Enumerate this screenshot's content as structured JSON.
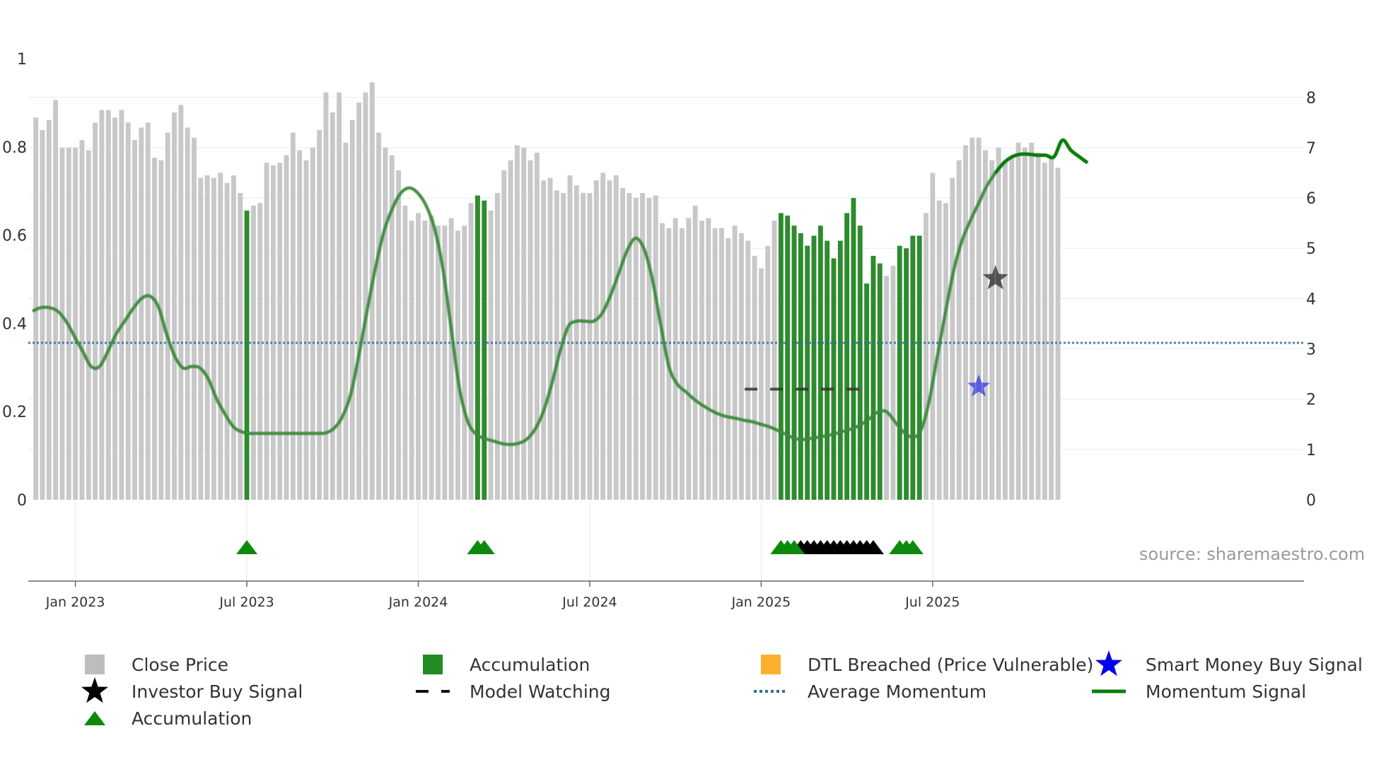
{
  "chart_data": {
    "type": "bar+line",
    "left_axis": {
      "ticks": [
        "0",
        "0.2",
        "0.4",
        "0.6",
        "0.8",
        "1"
      ],
      "range": [
        0,
        1
      ]
    },
    "right_axis": {
      "ticks": [
        "0",
        "1",
        "2",
        "3",
        "4",
        "5",
        "6",
        "7",
        "8"
      ],
      "range": [
        0,
        8.77
      ]
    },
    "x_axis": {
      "ticks": [
        "Jan 2023",
        "Jul 2023",
        "Jan 2024",
        "Jul 2024",
        "Jan 2025",
        "Jul 2025"
      ],
      "tick_weeks": [
        6,
        32,
        58,
        84,
        110,
        136
      ]
    },
    "close_price": [
      7.6,
      7.35,
      7.55,
      7.95,
      7.0,
      7.0,
      7.0,
      7.15,
      6.95,
      7.5,
      7.75,
      7.75,
      7.6,
      7.75,
      7.5,
      7.15,
      7.4,
      7.5,
      6.8,
      6.75,
      7.3,
      7.7,
      7.85,
      7.4,
      7.2,
      6.4,
      6.45,
      6.4,
      6.5,
      6.3,
      6.45,
      6.1,
      5.75,
      5.85,
      5.9,
      6.7,
      6.65,
      6.7,
      6.85,
      7.3,
      6.95,
      6.75,
      7.0,
      7.35,
      8.1,
      7.7,
      8.1,
      7.1,
      7.55,
      7.9,
      8.1,
      8.3,
      7.3,
      7.0,
      6.85,
      6.55,
      5.85,
      5.55,
      5.7,
      5.55,
      5.65,
      5.45,
      5.45,
      5.6,
      5.35,
      5.45,
      5.9,
      6.05,
      5.95,
      5.75,
      6.1,
      6.55,
      6.75,
      7.05,
      7.0,
      6.75,
      6.9,
      6.35,
      6.4,
      6.15,
      6.1,
      6.45,
      6.25,
      6.1,
      6.1,
      6.35,
      6.5,
      6.35,
      6.45,
      6.2,
      6.1,
      6.0,
      6.1,
      6.0,
      6.05,
      5.5,
      5.4,
      5.6,
      5.4,
      5.6,
      5.85,
      5.55,
      5.6,
      5.4,
      5.4,
      5.2,
      5.45,
      5.3,
      5.15,
      4.85,
      4.6,
      5.05,
      5.55,
      5.7,
      5.65,
      5.45,
      5.3,
      5.05,
      5.25,
      5.45,
      5.15,
      4.8,
      5.15,
      5.7,
      6.0,
      5.45,
      4.3,
      4.85,
      4.7,
      4.45,
      4.65,
      5.05,
      5.0,
      5.25,
      5.25,
      5.7,
      6.5,
      5.95,
      5.9,
      6.4,
      6.75,
      7.05,
      7.2,
      7.2,
      6.95,
      6.75,
      7.0,
      6.75,
      6.8,
      7.1,
      7.0,
      7.1,
      6.9,
      6.7,
      6.8,
      6.6
    ],
    "accumulation_weeks": [
      32,
      67,
      68,
      113,
      114,
      115,
      116,
      117,
      118,
      119,
      120,
      121,
      122,
      123,
      124,
      125,
      126,
      127,
      128,
      131,
      132,
      133,
      134
    ],
    "momentum_signal": [
      [
        0,
        3.75
      ],
      [
        1,
        3.82
      ],
      [
        2,
        3.82
      ],
      [
        3,
        3.75
      ],
      [
        4,
        3.55
      ],
      [
        5,
        3.25
      ],
      [
        6,
        2.95
      ],
      [
        7,
        2.65
      ],
      [
        8,
        2.65
      ],
      [
        9,
        2.95
      ],
      [
        10,
        3.3
      ],
      [
        11,
        3.55
      ],
      [
        12,
        3.8
      ],
      [
        13,
        4.0
      ],
      [
        14,
        4.05
      ],
      [
        15,
        3.85
      ],
      [
        16,
        3.3
      ],
      [
        17,
        2.85
      ],
      [
        18,
        2.62
      ],
      [
        19,
        2.65
      ],
      [
        20,
        2.62
      ],
      [
        21,
        2.4
      ],
      [
        22,
        2.0
      ],
      [
        23,
        1.7
      ],
      [
        24,
        1.45
      ],
      [
        25,
        1.35
      ],
      [
        26,
        1.32
      ],
      [
        27,
        1.32
      ],
      [
        28,
        1.32
      ],
      [
        29,
        1.32
      ],
      [
        30,
        1.32
      ],
      [
        31,
        1.32
      ],
      [
        32,
        1.32
      ],
      [
        33,
        1.32
      ],
      [
        34,
        1.32
      ],
      [
        35,
        1.33
      ],
      [
        36,
        1.42
      ],
      [
        37,
        1.65
      ],
      [
        38,
        2.1
      ],
      [
        39,
        2.9
      ],
      [
        40,
        3.8
      ],
      [
        41,
        4.65
      ],
      [
        42,
        5.35
      ],
      [
        43,
        5.8
      ],
      [
        44,
        6.1
      ],
      [
        45,
        6.2
      ],
      [
        46,
        6.1
      ],
      [
        47,
        5.85
      ],
      [
        48,
        5.4
      ],
      [
        49,
        4.6
      ],
      [
        50,
        3.4
      ],
      [
        51,
        2.2
      ],
      [
        52,
        1.55
      ],
      [
        53,
        1.3
      ],
      [
        54,
        1.22
      ],
      [
        55,
        1.17
      ],
      [
        56,
        1.12
      ],
      [
        57,
        1.1
      ],
      [
        58,
        1.12
      ],
      [
        59,
        1.2
      ],
      [
        60,
        1.4
      ],
      [
        61,
        1.75
      ],
      [
        62,
        2.3
      ],
      [
        63,
        2.95
      ],
      [
        64,
        3.45
      ],
      [
        65,
        3.55
      ],
      [
        66,
        3.55
      ],
      [
        67,
        3.55
      ],
      [
        68,
        3.7
      ],
      [
        69,
        4.05
      ],
      [
        70,
        4.5
      ],
      [
        71,
        4.95
      ],
      [
        72,
        5.2
      ],
      [
        73,
        5.0
      ],
      [
        74,
        4.4
      ],
      [
        75,
        3.5
      ],
      [
        76,
        2.65
      ],
      [
        77,
        2.3
      ],
      [
        78,
        2.15
      ],
      [
        79,
        2.0
      ],
      [
        80,
        1.88
      ],
      [
        81,
        1.78
      ],
      [
        82,
        1.7
      ],
      [
        83,
        1.65
      ],
      [
        84,
        1.62
      ],
      [
        85,
        1.58
      ],
      [
        86,
        1.55
      ],
      [
        87,
        1.5
      ],
      [
        88,
        1.45
      ],
      [
        89,
        1.38
      ],
      [
        90,
        1.3
      ],
      [
        91,
        1.22
      ],
      [
        92,
        1.2
      ],
      [
        93,
        1.22
      ],
      [
        94,
        1.25
      ],
      [
        95,
        1.28
      ],
      [
        96,
        1.32
      ],
      [
        97,
        1.37
      ],
      [
        98,
        1.42
      ],
      [
        99,
        1.5
      ],
      [
        100,
        1.62
      ],
      [
        101,
        1.75
      ],
      [
        102,
        1.75
      ],
      [
        103,
        1.55
      ],
      [
        104,
        1.35
      ],
      [
        105,
        1.25
      ],
      [
        106,
        1.35
      ],
      [
        107,
        1.9
      ],
      [
        108,
        2.8
      ],
      [
        109,
        3.7
      ],
      [
        110,
        4.55
      ],
      [
        111,
        5.15
      ],
      [
        112,
        5.55
      ],
      [
        113,
        5.9
      ],
      [
        114,
        6.25
      ],
      [
        115,
        6.5
      ],
      [
        116,
        6.7
      ],
      [
        117,
        6.82
      ],
      [
        118,
        6.87
      ],
      [
        119,
        6.87
      ],
      [
        120,
        6.85
      ],
      [
        121,
        6.85
      ],
      [
        122,
        6.82
      ],
      [
        123,
        7.15
      ],
      [
        124,
        6.95
      ],
      [
        125,
        6.82
      ],
      [
        126,
        6.7
      ]
    ],
    "momentum_bold_from_week": 115,
    "average_momentum": 3.12,
    "model_watching": {
      "start_week": 108,
      "end_week": 126,
      "level": 2.2
    },
    "investor_buy_signal": {
      "week": 115,
      "value": 4.4
    },
    "smart_money_buy_signal": {
      "week": 113,
      "value": 2.25
    },
    "accumulation_markers": {
      "green_weeks": [
        32,
        67,
        68,
        113,
        114,
        115,
        131,
        132,
        133
      ],
      "black_weeks": [
        116,
        117,
        118,
        119,
        120,
        121,
        122,
        123,
        124,
        125,
        126,
        127
      ]
    }
  },
  "colors": {
    "close_price": "#c8c8c8",
    "accumulation_bar": "#2e8b2e",
    "momentum_line": "#3c8c3c",
    "momentum_bold": "#0a7d0a",
    "average_momentum": "#2e6da4",
    "marker_green": "#0d8a0d",
    "marker_black": "#000000",
    "dtl": "#fbb02d",
    "smart_money": "#0000ee",
    "investor": "#111111"
  },
  "source": "source: sharemaestro.com",
  "legend": {
    "close_price": "Close Price",
    "accumulation_bar": "Accumulation",
    "dtl_breached": "DTL Breached (Price Vulnerable)",
    "smart_money": "Smart Money Buy Signal",
    "investor": "Investor Buy Signal",
    "model_watching": "Model Watching",
    "average_momentum": "Average Momentum",
    "momentum_signal": "Momentum Signal",
    "accumulation_marker": "Accumulation"
  }
}
